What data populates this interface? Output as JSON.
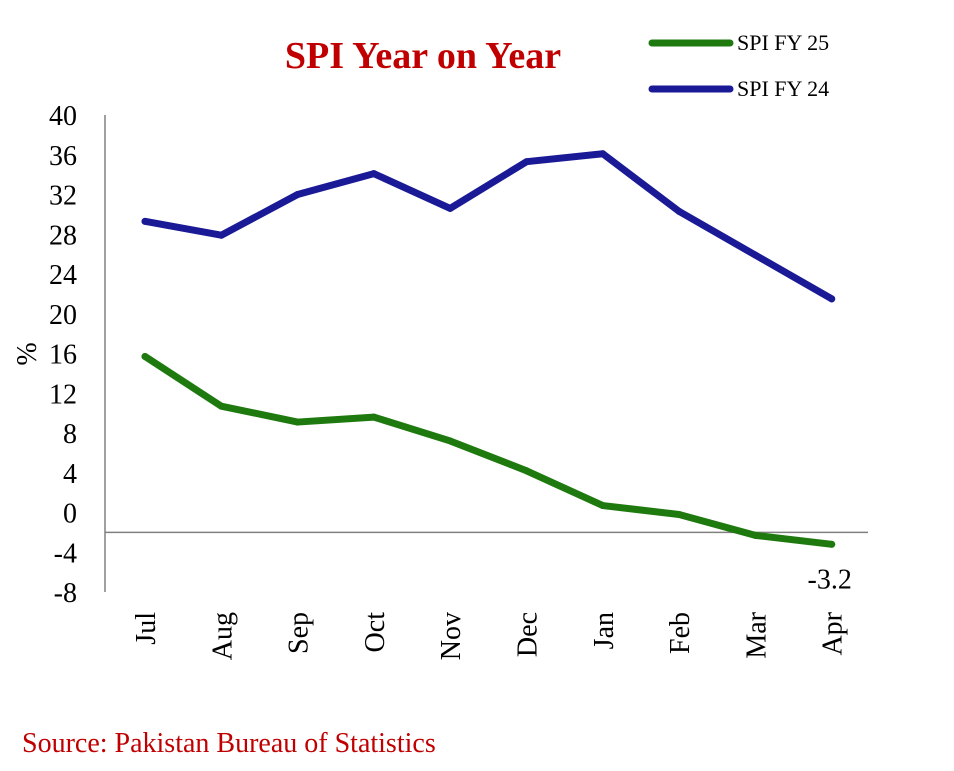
{
  "colors": {
    "title": "#C00000",
    "source": "#C00000",
    "axis": "#808080",
    "fy25": "#1E7A0E",
    "fy24": "#1A1A96"
  },
  "chart_data": {
    "type": "line",
    "title": "SPI Year on Year",
    "ylabel": "%",
    "xlabel": "",
    "categories": [
      "Jul",
      "Aug",
      "Sep",
      "Oct",
      "Nov",
      "Dec",
      "Jan",
      "Feb",
      "Mar",
      "Apr"
    ],
    "ylim": [
      -8,
      40
    ],
    "yticks": [
      "40",
      "36",
      "32",
      "28",
      "24",
      "20",
      "16",
      "12",
      "8",
      "4",
      "0",
      "-4",
      "-8"
    ],
    "x_axis_at": -2,
    "grid": false,
    "legend_position": "top-right",
    "series": [
      {
        "name": "SPI FY 25",
        "color_key": "fy25",
        "values": [
          15.7,
          10.7,
          9.1,
          9.6,
          7.2,
          4.2,
          0.7,
          -0.2,
          -2.3,
          -3.2
        ]
      },
      {
        "name": "SPI FY 24",
        "color_key": "fy24",
        "values": [
          29.3,
          27.9,
          32.0,
          34.1,
          30.6,
          35.3,
          36.1,
          30.3,
          25.9,
          21.5
        ]
      }
    ],
    "annotations": [
      {
        "category": "Apr",
        "series": 0,
        "text": "-3.2"
      }
    ]
  },
  "source_text": "Source: Pakistan Bureau of Statistics"
}
